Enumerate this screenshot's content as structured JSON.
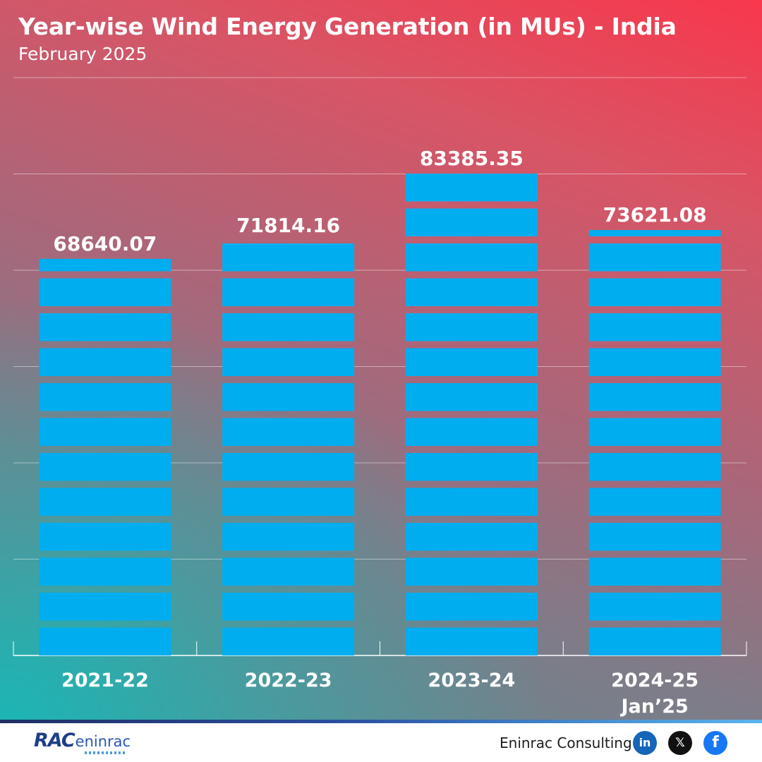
{
  "header": {
    "title": "Year-wise Wind Energy Generation (in MUs) - India",
    "subtitle": "February 2025"
  },
  "chart_data": {
    "type": "bar",
    "title": "Year-wise Wind Energy Generation (in MUs) - India",
    "subtitle": "February 2025",
    "categories": [
      "2021-22",
      "2022-23",
      "2023-24",
      "2024-25 Jan’25"
    ],
    "category_lines": [
      [
        "2021-22"
      ],
      [
        "2022-23"
      ],
      [
        "2023-24"
      ],
      [
        "2024-25",
        "Jan’25"
      ]
    ],
    "values": [
      68640.07,
      71814.16,
      83385.35,
      73621.08
    ],
    "value_labels": [
      "68640.07",
      "71814.16",
      "83385.35",
      "73621.08"
    ],
    "ylim": [
      0,
      100000
    ],
    "grid": true,
    "bar_color": "#00aeef",
    "xlabel": "",
    "ylabel": ""
  },
  "footer": {
    "logo_text": "RAC",
    "logo_subtext": "eninrac",
    "company": "Eninrac Consulting",
    "social": [
      {
        "icon": "linkedin-icon",
        "glyph": "in"
      },
      {
        "icon": "x-icon",
        "glyph": "𝕏"
      },
      {
        "icon": "facebook-icon",
        "glyph": "f"
      }
    ]
  },
  "colors": {
    "bar": "#00aeef",
    "accent": "#f8374c",
    "teal": "#18b8b6",
    "brand": "#1f3f86"
  }
}
